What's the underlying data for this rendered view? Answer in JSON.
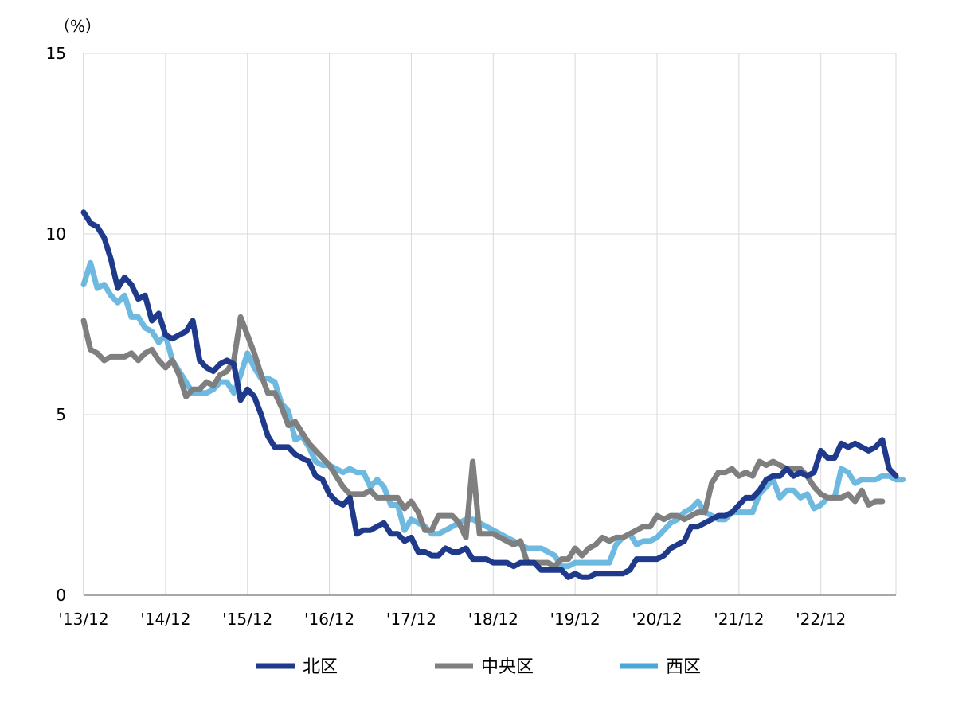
{
  "chart_data": {
    "type": "line",
    "title": "",
    "unit_label": "（%）",
    "xlabel": "",
    "ylabel": "",
    "ylim": [
      0,
      15
    ],
    "y_ticks": [
      0,
      5,
      10,
      15
    ],
    "x_tick_labels": [
      "'13/12",
      "'14/12",
      "'15/12",
      "'16/12",
      "'17/12",
      "'18/12",
      "'19/12",
      "'20/12",
      "'21/12",
      "'22/12"
    ],
    "grid": true,
    "legend_position": "bottom",
    "x_start": "2013-12",
    "series": [
      {
        "name": "北区",
        "color": "#1f3a8a",
        "values": [
          10.6,
          10.3,
          10.2,
          9.9,
          9.3,
          8.5,
          8.8,
          8.6,
          8.2,
          8.3,
          7.6,
          7.8,
          7.2,
          7.1,
          7.2,
          7.3,
          7.6,
          6.5,
          6.3,
          6.2,
          6.4,
          6.5,
          6.4,
          5.4,
          5.7,
          5.5,
          5.0,
          4.4,
          4.1,
          4.1,
          4.1,
          3.9,
          3.8,
          3.7,
          3.3,
          3.2,
          2.8,
          2.6,
          2.5,
          2.7,
          1.7,
          1.8,
          1.8,
          1.9,
          2.0,
          1.7,
          1.7,
          1.5,
          1.6,
          1.2,
          1.2,
          1.1,
          1.1,
          1.3,
          1.2,
          1.2,
          1.3,
          1.0,
          1.0,
          1.0,
          0.9,
          0.9,
          0.9,
          0.8,
          0.9,
          0.9,
          0.9,
          0.7,
          0.7,
          0.7,
          0.7,
          0.5,
          0.6,
          0.5,
          0.5,
          0.6,
          0.6,
          0.6,
          0.6,
          0.6,
          0.7,
          1.0,
          1.0,
          1.0,
          1.0,
          1.1,
          1.3,
          1.4,
          1.5,
          1.9,
          1.9,
          2.0,
          2.1,
          2.2,
          2.2,
          2.3,
          2.5,
          2.7,
          2.7,
          2.9,
          3.2,
          3.3,
          3.3,
          3.5,
          3.3,
          3.4,
          3.3,
          3.4,
          4.0,
          3.8,
          3.8,
          4.2,
          4.1,
          4.2,
          4.1,
          4.0,
          4.1,
          4.3,
          3.5,
          3.3
        ]
      },
      {
        "name": "中央区",
        "color": "#7f7f7f",
        "values": [
          7.6,
          6.8,
          6.7,
          6.5,
          6.6,
          6.6,
          6.6,
          6.7,
          6.5,
          6.7,
          6.8,
          6.5,
          6.3,
          6.5,
          6.1,
          5.5,
          5.7,
          5.7,
          5.9,
          5.8,
          6.1,
          6.2,
          6.5,
          7.7,
          7.2,
          6.7,
          6.1,
          5.6,
          5.6,
          5.2,
          4.7,
          4.8,
          4.5,
          4.2,
          4.0,
          3.8,
          3.6,
          3.3,
          3.0,
          2.8,
          2.8,
          2.8,
          2.9,
          2.7,
          2.7,
          2.7,
          2.7,
          2.4,
          2.6,
          2.3,
          1.8,
          1.8,
          2.2,
          2.2,
          2.2,
          2.0,
          1.6,
          3.7,
          1.7,
          1.7,
          1.7,
          1.6,
          1.5,
          1.4,
          1.5,
          0.9,
          0.9,
          0.9,
          0.9,
          0.8,
          1.0,
          1.0,
          1.3,
          1.1,
          1.3,
          1.4,
          1.6,
          1.5,
          1.6,
          1.6,
          1.7,
          1.8,
          1.9,
          1.9,
          2.2,
          2.1,
          2.2,
          2.2,
          2.1,
          2.2,
          2.3,
          2.3,
          3.1,
          3.4,
          3.4,
          3.5,
          3.3,
          3.4,
          3.3,
          3.7,
          3.6,
          3.7,
          3.6,
          3.5,
          3.5,
          3.5,
          3.3,
          3.0,
          2.8,
          2.7,
          2.7,
          2.7,
          2.8,
          2.6,
          2.9,
          2.5,
          2.6,
          2.6
        ]
      },
      {
        "name": "西区",
        "color": "#4aa8d8",
        "values": [
          8.6,
          9.2,
          8.5,
          8.6,
          8.3,
          8.1,
          8.3,
          7.7,
          7.7,
          7.4,
          7.3,
          7.0,
          7.2,
          6.5,
          6.2,
          5.9,
          5.6,
          5.6,
          5.6,
          5.7,
          5.9,
          5.9,
          5.6,
          6.1,
          6.7,
          6.3,
          6.0,
          6.0,
          5.9,
          5.3,
          5.1,
          4.3,
          4.4,
          4.1,
          3.7,
          3.6,
          3.6,
          3.5,
          3.4,
          3.5,
          3.4,
          3.4,
          3.0,
          3.2,
          3.0,
          2.5,
          2.5,
          1.8,
          2.1,
          2.0,
          1.9,
          1.7,
          1.7,
          1.8,
          1.9,
          2.0,
          2.1,
          2.1,
          2.0,
          1.9,
          1.8,
          1.7,
          1.6,
          1.5,
          1.4,
          1.3,
          1.3,
          1.3,
          1.2,
          1.1,
          0.8,
          0.8,
          0.9,
          0.9,
          0.9,
          0.9,
          0.9,
          0.9,
          1.4,
          1.6,
          1.7,
          1.4,
          1.5,
          1.5,
          1.6,
          1.8,
          2.0,
          2.1,
          2.3,
          2.4,
          2.6,
          2.3,
          2.2,
          2.1,
          2.1,
          2.3,
          2.3,
          2.3,
          2.3,
          2.8,
          3.0,
          3.2,
          2.7,
          2.9,
          2.9,
          2.7,
          2.8,
          2.4,
          2.5,
          2.7,
          2.7,
          3.5,
          3.4,
          3.1,
          3.2,
          3.2,
          3.2,
          3.3,
          3.3,
          3.2,
          3.2
        ]
      }
    ]
  }
}
